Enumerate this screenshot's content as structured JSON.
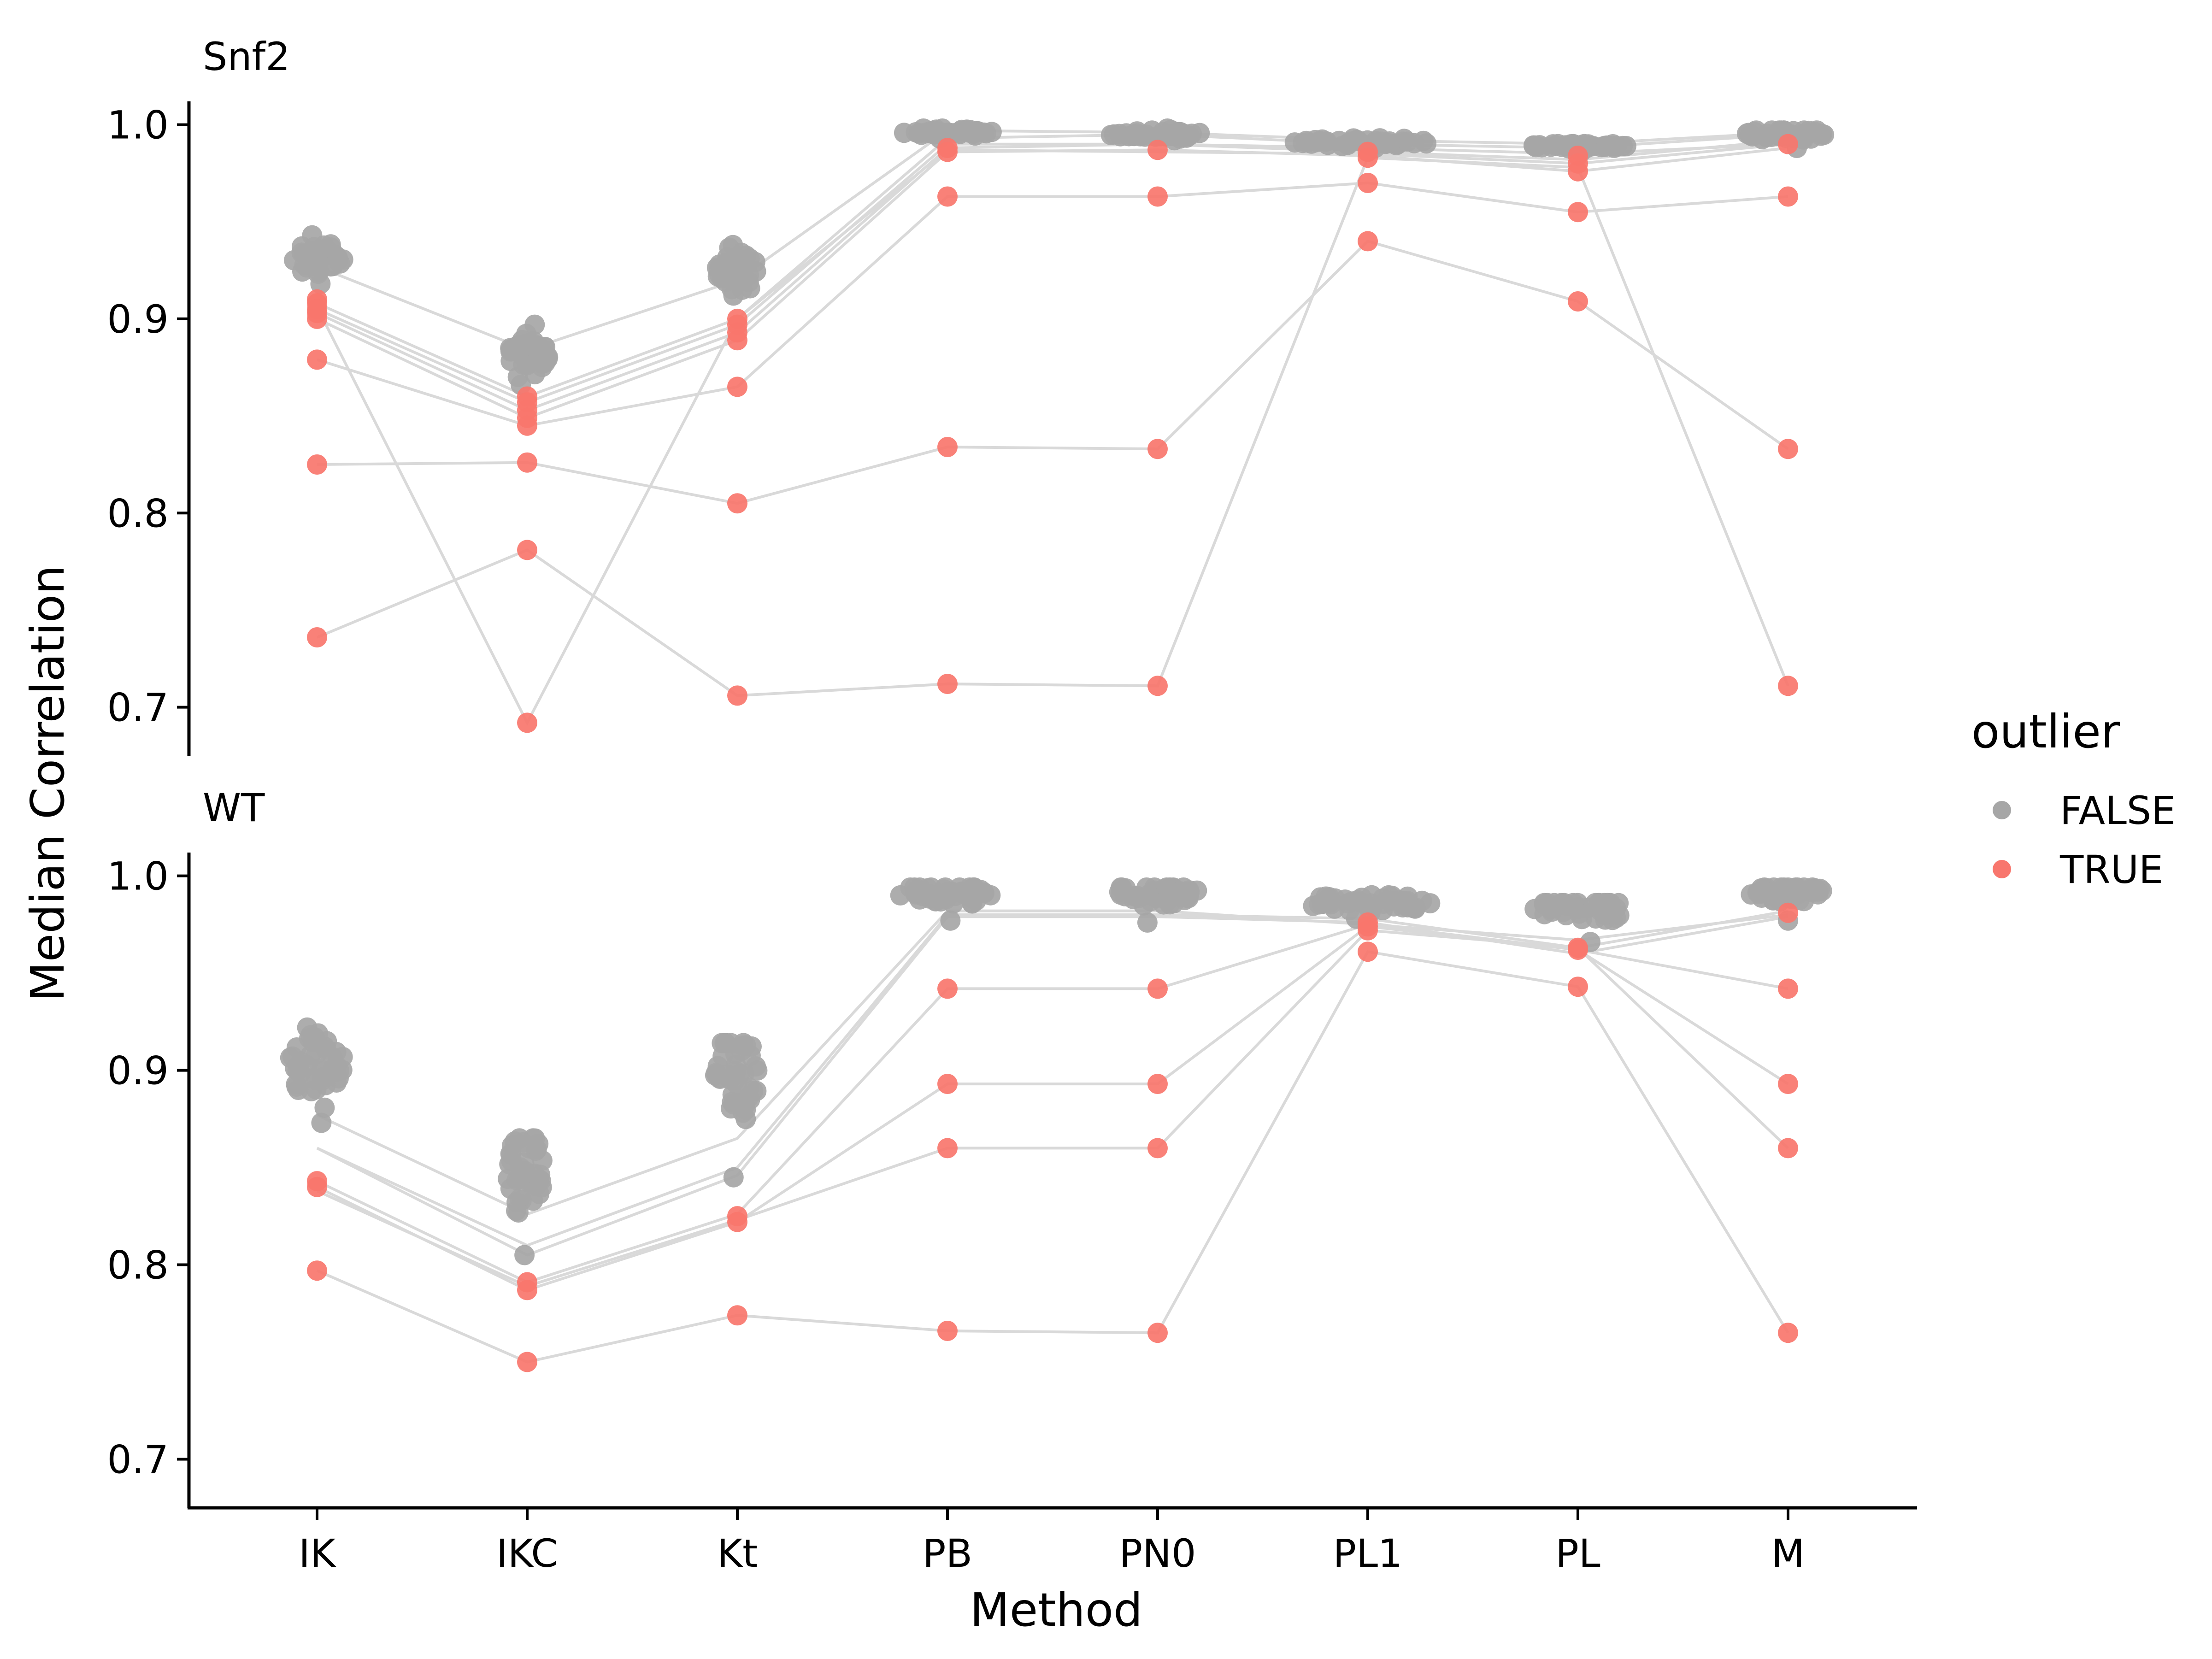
{
  "chart_data": {
    "type": "scatter",
    "xlabel": "Method",
    "ylabel": "Median Correlation",
    "categories": [
      "IK",
      "IKC",
      "Kt",
      "PB",
      "PN0",
      "PL1",
      "PL",
      "M"
    ],
    "ylim": [
      0.675,
      1.012
    ],
    "yticks": [
      0.7,
      0.8,
      0.9,
      1.0
    ],
    "ytick_labels": [
      "0.7",
      "0.8",
      "0.9",
      "1.0"
    ],
    "legend": {
      "title": "outlier",
      "position": "right",
      "entries": [
        {
          "label": "FALSE",
          "color": "#a6a6a6"
        },
        {
          "label": "TRUE",
          "color": "#f8766d"
        }
      ]
    },
    "colors": {
      "FALSE": "#a6a6a6",
      "TRUE": "#f8766d",
      "line": "#d9d9d9"
    },
    "facets": [
      {
        "title": "Snf2",
        "false_clusters": [
          {
            "category": "IK",
            "center": 0.931,
            "min": 0.918,
            "max": 0.943,
            "count": 40,
            "spread": 0.28
          },
          {
            "category": "IKC",
            "center": 0.882,
            "min": 0.866,
            "max": 0.897,
            "count": 40,
            "spread": 0.22
          },
          {
            "category": "Kt",
            "center": 0.925,
            "min": 0.912,
            "max": 0.938,
            "count": 40,
            "spread": 0.22
          },
          {
            "category": "PB",
            "center": 0.996,
            "min": 0.993,
            "max": 0.998,
            "count": 40,
            "spread": 0.45
          },
          {
            "category": "PN0",
            "center": 0.995,
            "min": 0.992,
            "max": 0.998,
            "count": 40,
            "spread": 0.5
          },
          {
            "category": "PL1",
            "center": 0.991,
            "min": 0.988,
            "max": 0.993,
            "count": 40,
            "spread": 0.72
          },
          {
            "category": "PL",
            "center": 0.989,
            "min": 0.986,
            "max": 0.99,
            "count": 40,
            "spread": 0.52
          },
          {
            "category": "M",
            "center": 0.995,
            "min": 0.988,
            "max": 0.997,
            "count": 40,
            "spread": 0.42
          }
        ],
        "lines": [
          [
            0.927,
            0.884,
            0.92,
            0.997,
            0.996,
            0.992,
            0.99,
            0.996
          ],
          [
            0.908,
            0.86,
            0.9,
            0.993,
            0.995,
            0.99,
            0.988,
            0.995
          ],
          [
            0.905,
            0.857,
            0.897,
            0.99,
            0.99,
            0.988,
            0.985,
            0.99
          ],
          [
            0.903,
            0.853,
            0.893,
            0.988,
            0.99,
            0.986,
            0.982,
            0.992
          ],
          [
            0.9,
            0.849,
            0.889,
            0.986,
            0.987,
            0.984,
            0.976,
            0.988
          ],
          [
            0.879,
            0.845,
            0.865,
            0.963,
            0.963,
            0.97,
            0.955,
            0.963
          ],
          [
            0.825,
            0.826,
            0.805,
            0.834,
            0.833,
            0.94,
            0.909,
            0.833
          ],
          [
            0.736,
            0.781,
            0.706,
            0.712,
            0.711,
            0.983,
            0.978,
            0.711
          ],
          [
            0.906,
            0.692,
            0.9,
            0.987,
            0.986,
            0.985,
            0.98,
            0.99
          ]
        ],
        "true_points": [
          {
            "category": "IK",
            "values": [
              0.91,
              0.908,
              0.905,
              0.903,
              0.9,
              0.879,
              0.825,
              0.736
            ]
          },
          {
            "category": "IKC",
            "values": [
              0.86,
              0.857,
              0.853,
              0.849,
              0.845,
              0.826,
              0.781,
              0.692
            ]
          },
          {
            "category": "Kt",
            "values": [
              0.9,
              0.897,
              0.893,
              0.889,
              0.865,
              0.805,
              0.706
            ]
          },
          {
            "category": "PB",
            "values": [
              0.988,
              0.986,
              0.963,
              0.834,
              0.712
            ]
          },
          {
            "category": "PN0",
            "values": [
              0.987,
              0.963,
              0.833,
              0.711
            ]
          },
          {
            "category": "PL1",
            "values": [
              0.986,
              0.983,
              0.97,
              0.94
            ]
          },
          {
            "category": "PL",
            "values": [
              0.984,
              0.98,
              0.976,
              0.955,
              0.909
            ]
          },
          {
            "category": "M",
            "values": [
              0.99,
              0.963,
              0.833,
              0.711
            ]
          }
        ]
      },
      {
        "title": "WT",
        "false_clusters": [
          {
            "category": "IK",
            "center": 0.903,
            "min": 0.873,
            "max": 0.922,
            "count": 45,
            "spread": 0.28
          },
          {
            "category": "IKC",
            "center": 0.848,
            "min": 0.805,
            "max": 0.865,
            "count": 45,
            "spread": 0.2
          },
          {
            "category": "Kt",
            "center": 0.896,
            "min": 0.845,
            "max": 0.914,
            "count": 45,
            "spread": 0.22
          },
          {
            "category": "PB",
            "center": 0.991,
            "min": 0.977,
            "max": 0.994,
            "count": 45,
            "spread": 0.5
          },
          {
            "category": "PN0",
            "center": 0.991,
            "min": 0.976,
            "max": 0.994,
            "count": 45,
            "spread": 0.45
          },
          {
            "category": "PL1",
            "center": 0.986,
            "min": 0.978,
            "max": 0.99,
            "count": 45,
            "spread": 0.65
          },
          {
            "category": "PL",
            "center": 0.983,
            "min": 0.966,
            "max": 0.986,
            "count": 45,
            "spread": 0.52
          },
          {
            "category": "M",
            "center": 0.991,
            "min": 0.977,
            "max": 0.994,
            "count": 45,
            "spread": 0.38
          }
        ],
        "lines": [
          [
            0.877,
            0.826,
            0.865,
            0.982,
            0.982,
            0.975,
            0.967,
            0.98
          ],
          [
            0.86,
            0.81,
            0.85,
            0.98,
            0.98,
            0.978,
            0.963,
            0.982
          ],
          [
            0.86,
            0.805,
            0.846,
            0.979,
            0.979,
            0.976,
            0.96,
            0.979
          ],
          [
            0.843,
            0.791,
            0.826,
            0.942,
            0.942,
            0.975,
            0.962,
            0.942
          ],
          [
            0.84,
            0.787,
            0.822,
            0.893,
            0.893,
            0.974,
            0.962,
            0.893
          ],
          [
            0.838,
            0.789,
            0.823,
            0.86,
            0.86,
            0.972,
            0.963,
            0.86
          ],
          [
            0.797,
            0.75,
            0.774,
            0.766,
            0.765,
            0.961,
            0.943,
            0.765
          ]
        ],
        "true_points": [
          {
            "category": "IK",
            "values": [
              0.843,
              0.84,
              0.797
            ]
          },
          {
            "category": "IKC",
            "values": [
              0.791,
              0.787,
              0.75
            ]
          },
          {
            "category": "Kt",
            "values": [
              0.825,
              0.822,
              0.774
            ]
          },
          {
            "category": "PB",
            "values": [
              0.942,
              0.893,
              0.86,
              0.766
            ]
          },
          {
            "category": "PN0",
            "values": [
              0.942,
              0.893,
              0.86,
              0.765
            ]
          },
          {
            "category": "PL1",
            "values": [
              0.976,
              0.974,
              0.972,
              0.961
            ]
          },
          {
            "category": "PL",
            "values": [
              0.963,
              0.962,
              0.943
            ]
          },
          {
            "category": "M",
            "values": [
              0.981,
              0.942,
              0.893,
              0.86,
              0.765
            ]
          }
        ]
      }
    ]
  }
}
